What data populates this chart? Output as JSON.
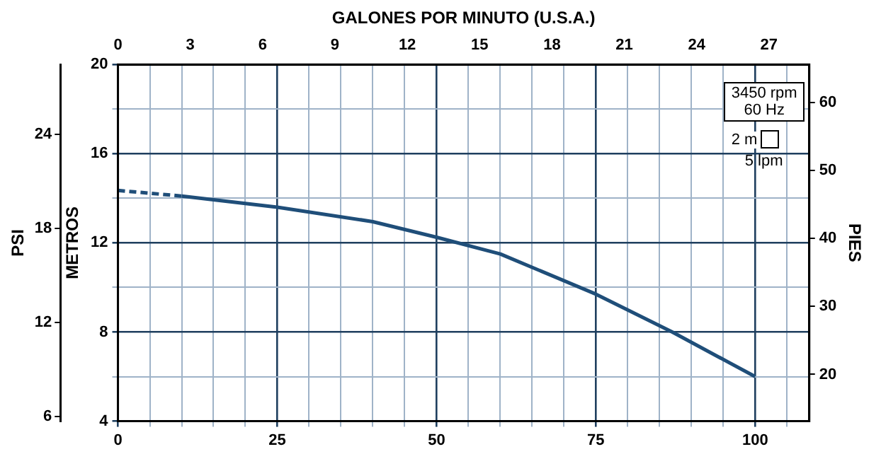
{
  "chart_data": {
    "type": "line",
    "x2label": "GALONES POR MINUTO (U.S.A.)",
    "ylabel": "METROS",
    "y2label": "PIES",
    "y3label": "PSI",
    "xlim": [
      0,
      108.5
    ],
    "xticks": [
      0,
      {
        "value": 5,
        "label": null
      },
      {
        "value": 10,
        "label": null
      },
      {
        "value": 15,
        "label": null
      },
      {
        "value": 20,
        "label": null
      },
      25,
      {
        "value": 30,
        "label": null
      },
      {
        "value": 35,
        "label": null
      },
      {
        "value": 40,
        "label": null
      },
      {
        "value": 45,
        "label": null
      },
      50,
      {
        "value": 55,
        "label": null
      },
      {
        "value": 60,
        "label": null
      },
      {
        "value": 65,
        "label": null
      },
      {
        "value": 70,
        "label": null
      },
      75,
      {
        "value": 80,
        "label": null
      },
      {
        "value": 85,
        "label": null
      },
      {
        "value": 90,
        "label": null
      },
      {
        "value": 95,
        "label": null
      },
      100,
      {
        "value": 105,
        "label": null
      }
    ],
    "x2lim": [
      0,
      28.67
    ],
    "x2ticks": [
      0,
      3,
      6,
      9,
      12,
      15,
      18,
      21,
      24,
      27
    ],
    "ylim": [
      4,
      20
    ],
    "yticks": [
      4,
      {
        "value": 6,
        "label": null
      },
      8,
      {
        "value": 10,
        "label": null
      },
      12,
      {
        "value": 14,
        "label": null
      },
      16,
      {
        "value": 18,
        "label": null
      },
      20
    ],
    "y2lim": [
      13.12,
      65.6
    ],
    "y2ticks": [
      20,
      30,
      40,
      50,
      60
    ],
    "y3lim": [
      5.69,
      28.45
    ],
    "y3ticks": [
      6,
      12,
      18,
      24
    ],
    "grid": true,
    "legend": false,
    "marker": "none",
    "series": [
      {
        "color": "#1f4e79",
        "line_style": "dashed",
        "x": [
          0,
          10
        ],
        "values": [
          14.35,
          14.1
        ]
      },
      {
        "color": "#1f4e79",
        "line_style": "solid",
        "x": [
          10,
          25,
          40,
          50,
          60,
          75,
          87,
          100
        ],
        "values": [
          14.1,
          13.6,
          12.95,
          12.25,
          11.5,
          9.7,
          8.0,
          6.0
        ]
      }
    ],
    "annotations": [
      "3450 rpm\n60 Hz",
      "2 m",
      "5 lpm"
    ]
  }
}
